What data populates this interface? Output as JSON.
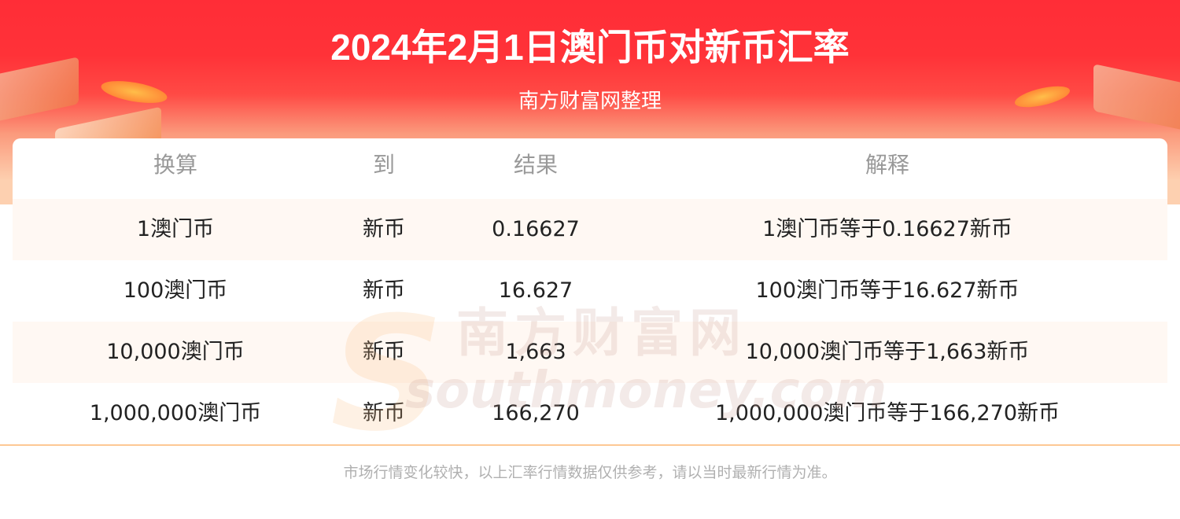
{
  "header": {
    "title": "2024年2月1日澳门币对新币汇率",
    "subtitle": "南方财富网整理"
  },
  "colors": {
    "banner_red": "#ff2d37",
    "row_alt": "#fff8f3",
    "divider": "#fdc894"
  },
  "table": {
    "columns": [
      "换算",
      "到",
      "结果",
      "解释"
    ],
    "rows": [
      [
        "1澳门币",
        "新币",
        "0.16627",
        "1澳门币等于0.16627新币"
      ],
      [
        "100澳门币",
        "新币",
        "16.627",
        "100澳门币等于16.627新币"
      ],
      [
        "10,000澳门币",
        "新币",
        "1,663",
        "10,000澳门币等于1,663新币"
      ],
      [
        "1,000,000澳门币",
        "新币",
        "166,270",
        "1,000,000澳门币等于166,270新币"
      ]
    ]
  },
  "watermark": {
    "cn": "南方财富网",
    "en": "southmoney.com",
    "s": "S"
  },
  "footer": {
    "note": "市场行情变化较快，以上汇率行情数据仅供参考，请以当时最新行情为准。"
  }
}
